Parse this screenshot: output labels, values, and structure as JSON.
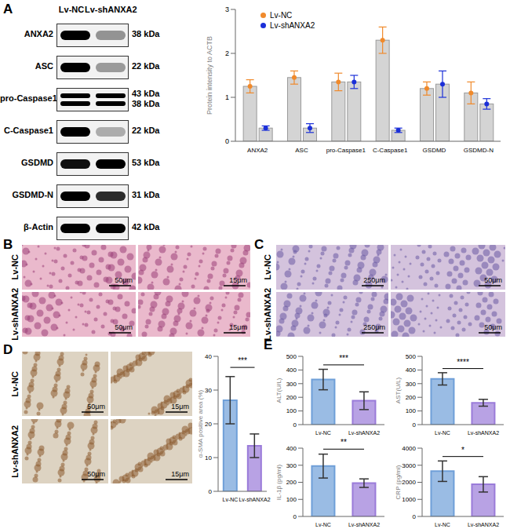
{
  "figure": {
    "panel_letters": [
      "A",
      "B",
      "C",
      "D",
      "E"
    ],
    "blot": {
      "lanes": [
        "Lv-NC",
        "Lv-shANXA2"
      ],
      "rows": [
        {
          "label": "ANXA2",
          "kda": [
            "38 kDa"
          ]
        },
        {
          "label": "ASC",
          "kda": [
            "22 kDa"
          ]
        },
        {
          "label": "pro-Caspase1",
          "kda": [
            "43 kDa",
            "38 kDa"
          ]
        },
        {
          "label": "C-Caspase1",
          "kda": [
            "22 kDa"
          ]
        },
        {
          "label": "GSDMD",
          "kda": [
            "53 kDa"
          ]
        },
        {
          "label": "GSDMD-N",
          "kda": [
            "31 kDa"
          ]
        },
        {
          "label": "β-Actin",
          "kda": [
            "42 kDa"
          ]
        }
      ]
    },
    "histology": [
      {
        "groups": [
          "Lv-NC",
          "Lv-shANXA2"
        ],
        "scale_bars": [
          "50μm",
          "15μm"
        ]
      },
      {
        "groups": [
          "Lv-NC",
          "Lv-shANXA2"
        ],
        "scale_bars": [
          "250μm",
          "50μm"
        ]
      },
      {
        "groups": [
          "Lv-NC",
          "Lv-shANXA2"
        ],
        "scale_bars": [
          "50μm",
          "15μm"
        ]
      }
    ]
  },
  "chart_data": [
    {
      "type": "bar",
      "categories": [
        "ANXA2",
        "ASC",
        "pro-Caspase1",
        "C-Caspase1",
        "GSDMD",
        "GSDMD-N"
      ],
      "y_label": "Protein intensity to ACTB",
      "ylim": [
        0,
        3
      ],
      "yticks": [
        0,
        1,
        2,
        3
      ],
      "legend": "upper left",
      "series": [
        {
          "name": "Lv-NC",
          "color": "#f08a2c",
          "values": [
            1.25,
            1.45,
            1.35,
            2.3,
            1.2,
            1.1
          ],
          "errors": [
            0.15,
            0.15,
            0.2,
            0.3,
            0.15,
            0.25
          ]
        },
        {
          "name": "Lv-shANXA2",
          "color": "#1b2fd8",
          "values": [
            0.3,
            0.3,
            1.35,
            0.25,
            1.3,
            0.85
          ],
          "errors": [
            0.05,
            0.1,
            0.15,
            0.05,
            0.3,
            0.12
          ]
        }
      ]
    },
    {
      "type": "bar",
      "categories": [
        "Lv-NC",
        "Lv-shANXA2"
      ],
      "values": [
        27,
        13.5
      ],
      "errors": [
        7,
        3.5
      ],
      "colors": [
        "#6f9fd8",
        "#9a7bd9"
      ],
      "y_label": "α-SMA positive area (%)",
      "ylim": [
        0,
        40
      ],
      "yticks": [
        0,
        10,
        20,
        30,
        40
      ],
      "annotation": "***"
    },
    {
      "type": "bar",
      "categories": [
        "Lv-NC",
        "Lv-shANXA2"
      ],
      "values": [
        330,
        175
      ],
      "errors": [
        75,
        65
      ],
      "colors": [
        "#6f9fd8",
        "#9a7bd9"
      ],
      "y_label": "ALT(U/L)",
      "ylim": [
        0,
        500
      ],
      "yticks": [
        0,
        100,
        200,
        300,
        400,
        500
      ],
      "annotation": "***"
    },
    {
      "type": "bar",
      "categories": [
        "Lv-NC",
        "Lv-shANXA2"
      ],
      "values": [
        335,
        160
      ],
      "errors": [
        45,
        25
      ],
      "colors": [
        "#6f9fd8",
        "#9a7bd9"
      ],
      "y_label": "AST(U/L)",
      "ylim": [
        0,
        500
      ],
      "yticks": [
        0,
        100,
        200,
        300,
        400,
        500
      ],
      "annotation": "****"
    },
    {
      "type": "bar",
      "categories": [
        "Lv-NC",
        "Lv-shANXA2"
      ],
      "values": [
        295,
        195
      ],
      "errors": [
        70,
        25
      ],
      "colors": [
        "#6f9fd8",
        "#9a7bd9"
      ],
      "y_label": "IL-1β (pg/ml)",
      "ylim": [
        0,
        400
      ],
      "yticks": [
        0,
        100,
        200,
        300,
        400
      ],
      "annotation": "**"
    },
    {
      "type": "bar",
      "categories": [
        "Lv-NC",
        "Lv-shANXA2"
      ],
      "values": [
        2650,
        1880
      ],
      "errors": [
        600,
        450
      ],
      "colors": [
        "#6f9fd8",
        "#9a7bd9"
      ],
      "y_label": "CRP (pg/ml)",
      "ylim": [
        0,
        4000
      ],
      "yticks": [
        0,
        1000,
        2000,
        3000,
        4000
      ],
      "annotation": "*"
    }
  ]
}
